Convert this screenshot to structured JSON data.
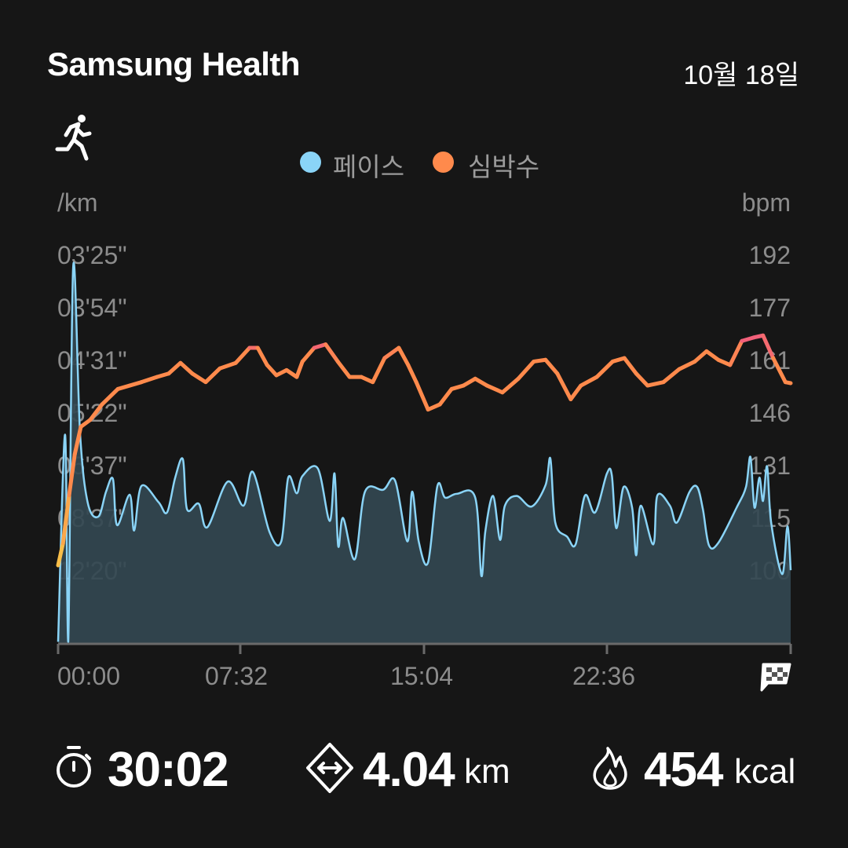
{
  "header": {
    "app_title": "Samsung Health",
    "date": "10월 18일",
    "activity_icon": "running-icon"
  },
  "legend": [
    {
      "label": "페이스",
      "color": "#8ad4f7"
    },
    {
      "label": "심박수",
      "color": "#ff8a4c"
    }
  ],
  "chart_data": {
    "type": "line",
    "x_axis": {
      "ticks": [
        "00:00",
        "07:32",
        "15:04",
        "22:36"
      ],
      "range": [
        "0:00",
        "30:02"
      ],
      "end_marker": "finish-flag-icon"
    },
    "y_left": {
      "unit": "/km",
      "ticks": [
        "03'25\"",
        "03'54\"",
        "04'31\"",
        "05'22\"",
        "06'37\"",
        "08'37\"",
        "12'20\""
      ]
    },
    "y_right": {
      "unit": "bpm",
      "ticks": [
        192,
        177,
        161,
        146,
        131,
        115,
        100
      ]
    },
    "grid": false,
    "legend_placement": "top-center",
    "series": [
      {
        "name": "페이스",
        "kind": "area",
        "color": "#8ad4f7",
        "fill": "#334851",
        "points": [
          [
            "0:00",
            "29'51\""
          ],
          [
            "0:17",
            "5'48\""
          ],
          [
            "0:25",
            "29'51\""
          ],
          [
            "0:37",
            "3'31\""
          ],
          [
            "0:54",
            "5'46\""
          ],
          [
            "1:13",
            "7'54\""
          ],
          [
            "1:39",
            "8'31\""
          ],
          [
            "1:58",
            "7'27\""
          ],
          [
            "2:15",
            "7'01\""
          ],
          [
            "2:25",
            "8'57\""
          ],
          [
            "2:56",
            "7'34\""
          ],
          [
            "3:07",
            "9'15\""
          ],
          [
            "3:25",
            "7'15\""
          ],
          [
            "4:07",
            "7'52\""
          ],
          [
            "4:28",
            "8'19\""
          ],
          [
            "4:48",
            "6'58\""
          ],
          [
            "5:07",
            "6'25\""
          ],
          [
            "5:17",
            "8'10\""
          ],
          [
            "5:46",
            "7'56\""
          ],
          [
            "6:07",
            "9'04\""
          ],
          [
            "6:57",
            "7'06\""
          ],
          [
            "7:36",
            "8'01\""
          ],
          [
            "7:59",
            "6'47\""
          ],
          [
            "8:40",
            "9'20\""
          ],
          [
            "9:09",
            "9'55\""
          ],
          [
            "9:26",
            "6'58\""
          ],
          [
            "9:47",
            "7'31\""
          ],
          [
            "10:01",
            "6'55\""
          ],
          [
            "10:39",
            "6'41\""
          ],
          [
            "11:08",
            "8'44\""
          ],
          [
            "11:20",
            "6'50\""
          ],
          [
            "11:29",
            "10'14\""
          ],
          [
            "11:41",
            "8'35\""
          ],
          [
            "12:10",
            "11'15\""
          ],
          [
            "12:35",
            "7'27\""
          ],
          [
            "13:20",
            "7'23\""
          ],
          [
            "13:49",
            "7'04\""
          ],
          [
            "14:19",
            "9'55\""
          ],
          [
            "14:31",
            "7'27\""
          ],
          [
            "14:47",
            "9'55\""
          ],
          [
            "15:10",
            "11'32\""
          ],
          [
            "15:33",
            "7'15\""
          ],
          [
            "15:52",
            "7'41\""
          ],
          [
            "16:21",
            "7'32\""
          ],
          [
            "17:06",
            "7'41\""
          ],
          [
            "17:21",
            "12'51\""
          ],
          [
            "17:31",
            "9'17\""
          ],
          [
            "17:50",
            "7'37\""
          ],
          [
            "18:07",
            "9'49\""
          ],
          [
            "18:19",
            "8'01\""
          ],
          [
            "18:48",
            "7'37\""
          ],
          [
            "19:25",
            "8'03\""
          ],
          [
            "19:59",
            "7'13\""
          ],
          [
            "20:11",
            "6'24\""
          ],
          [
            "20:23",
            "8'49\""
          ],
          [
            "20:52",
            "9'37\""
          ],
          [
            "21:13",
            "10'07\""
          ],
          [
            "21:36",
            "7'36\""
          ],
          [
            "22:01",
            "8'19\""
          ],
          [
            "22:30",
            "6'50\""
          ],
          [
            "22:42",
            "6'53\""
          ],
          [
            "22:53",
            "9'07\""
          ],
          [
            "23:11",
            "7'17\""
          ],
          [
            "23:32",
            "8'06\""
          ],
          [
            "23:42",
            "10'56\""
          ],
          [
            "23:53",
            "8'01\""
          ],
          [
            "24:24",
            "10'07\""
          ],
          [
            "24:34",
            "7'36\""
          ],
          [
            "25:05",
            "8'01\""
          ],
          [
            "25:22",
            "8'49\""
          ],
          [
            "25:53",
            "7'28\""
          ],
          [
            "26:12",
            "7'17\""
          ],
          [
            "26:26",
            "8'10\""
          ],
          [
            "26:41",
            "10'11\""
          ],
          [
            "27:04",
            "10'01\""
          ],
          [
            "27:49",
            "8'06\""
          ],
          [
            "28:12",
            "7'17\""
          ],
          [
            "28:23",
            "6'21\""
          ],
          [
            "28:33",
            "8'06\""
          ],
          [
            "28:45",
            "6'58\""
          ],
          [
            "28:54",
            "7'49\""
          ],
          [
            "29:04",
            "6'37\""
          ],
          [
            "29:14",
            "8'49\""
          ],
          [
            "29:41",
            "12'41\""
          ],
          [
            "29:54",
            "9'01\""
          ],
          [
            "30:02",
            "12'16\""
          ]
        ]
      },
      {
        "name": "심박수",
        "kind": "line",
        "color": "#ff8a4c",
        "low_color": "#f7c948",
        "high_color": "#f2607a",
        "points": [
          [
            "0:00",
            101.6
          ],
          [
            "0:12",
            108
          ],
          [
            "0:27",
            122
          ],
          [
            "0:41",
            134
          ],
          [
            "0:56",
            142
          ],
          [
            "1:19",
            144
          ],
          [
            "1:48",
            148.5
          ],
          [
            "2:27",
            153
          ],
          [
            "2:56",
            154
          ],
          [
            "3:25",
            155
          ],
          [
            "4:03",
            156.5
          ],
          [
            "4:32",
            157.5
          ],
          [
            "5:01",
            160.6
          ],
          [
            "5:30",
            157.5
          ],
          [
            "6:03",
            155
          ],
          [
            "6:38",
            159
          ],
          [
            "7:17",
            160.6
          ],
          [
            "7:51",
            165
          ],
          [
            "8:11",
            165
          ],
          [
            "8:34",
            160
          ],
          [
            "8:57",
            157
          ],
          [
            "9:22",
            158.5
          ],
          [
            "9:47",
            156.5
          ],
          [
            "10:01",
            161
          ],
          [
            "10:30",
            165
          ],
          [
            "10:58",
            166
          ],
          [
            "11:28",
            161
          ],
          [
            "11:57",
            156.5
          ],
          [
            "12:26",
            156.5
          ],
          [
            "12:54",
            155
          ],
          [
            "13:23",
            162
          ],
          [
            "13:58",
            165
          ],
          [
            "14:21",
            160
          ],
          [
            "14:41",
            155
          ],
          [
            "15:10",
            147
          ],
          [
            "15:39",
            148.5
          ],
          [
            "16:08",
            153
          ],
          [
            "16:37",
            154
          ],
          [
            "17:06",
            156
          ],
          [
            "17:35",
            154
          ],
          [
            "18:13",
            152
          ],
          [
            "18:52",
            156
          ],
          [
            "19:30",
            161
          ],
          [
            "19:59",
            161.5
          ],
          [
            "20:28",
            157.5
          ],
          [
            "21:01",
            150
          ],
          [
            "21:26",
            154
          ],
          [
            "22:05",
            156.5
          ],
          [
            "22:44",
            161
          ],
          [
            "23:13",
            162
          ],
          [
            "23:42",
            157.5
          ],
          [
            "24:10",
            154
          ],
          [
            "24:49",
            155
          ],
          [
            "25:28",
            158.8
          ],
          [
            "26:06",
            161
          ],
          [
            "26:35",
            164
          ],
          [
            "27:04",
            161.5
          ],
          [
            "27:33",
            160
          ],
          [
            "28:02",
            167
          ],
          [
            "28:31",
            168
          ],
          [
            "28:54",
            168.6
          ],
          [
            "29:19",
            162
          ],
          [
            "29:49",
            155
          ],
          [
            "30:02",
            154.7
          ]
        ]
      }
    ]
  },
  "stats": [
    {
      "icon": "stopwatch-icon",
      "value": "30:02",
      "unit": ""
    },
    {
      "icon": "distance-icon",
      "value": "4.04",
      "unit": "km"
    },
    {
      "icon": "flame-icon",
      "value": "454",
      "unit": "kcal"
    }
  ]
}
